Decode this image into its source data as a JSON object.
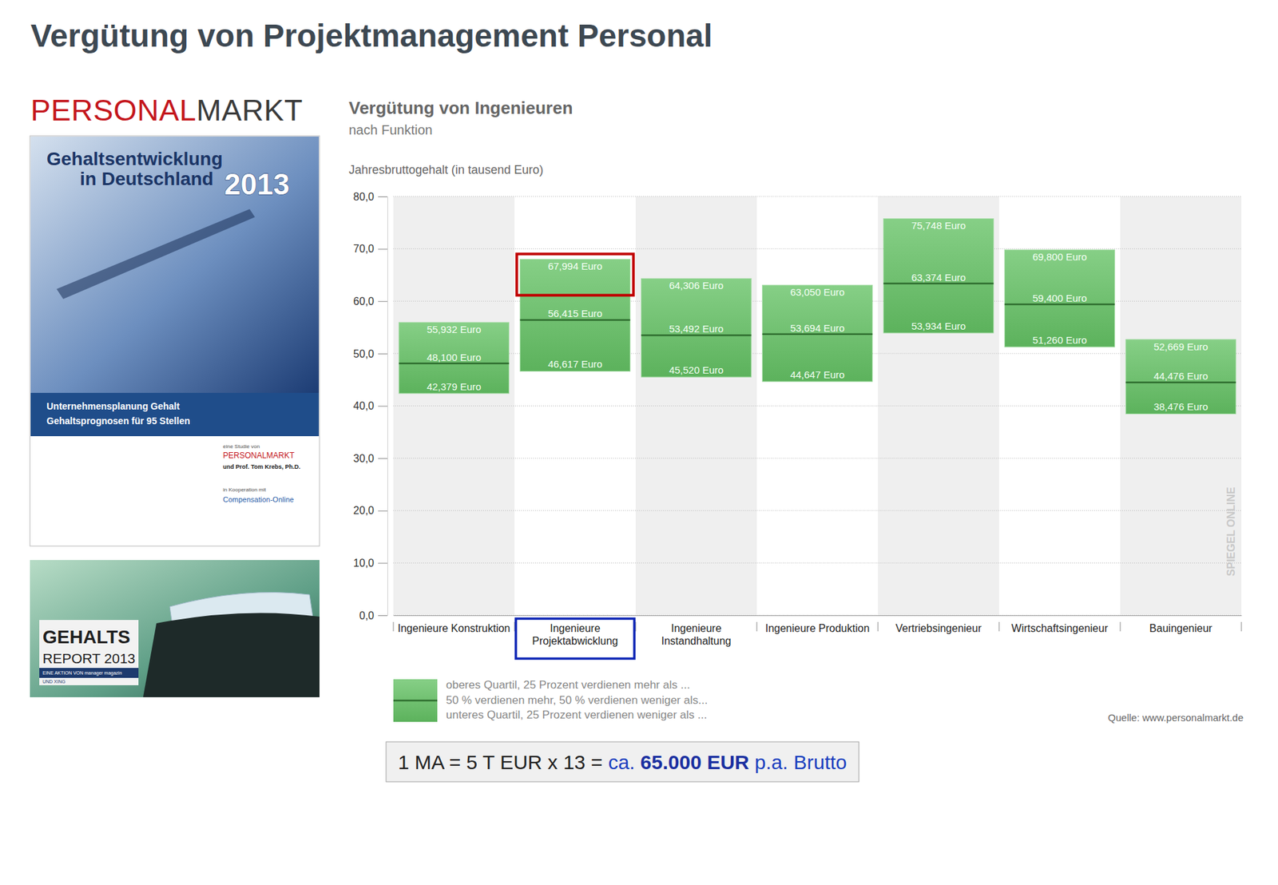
{
  "slide": {
    "title": "Vergütung von Projektmanagement Personal",
    "logo": [
      "PERSONAL",
      "MARKT"
    ],
    "cover": {
      "title_lines": [
        "Gehaltsentwicklung",
        "in Deutschland"
      ],
      "year": "2013",
      "band_lines": [
        "Unternehmensplanung Gehalt",
        "Gehaltsprognosen für 95 Stellen"
      ],
      "credits": [
        "eine Studie von",
        "PERSONALMARKT",
        "und Prof. Tom Krebs, Ph.D.",
        "in Kooperation mit",
        "Compensation-Online"
      ]
    },
    "report": [
      "GEHALTS",
      "REPORT 2013",
      "EINE AKTION VON manager magazin",
      "UND XING"
    ],
    "formula": [
      "1 MA = 5 T EUR x 13 = ",
      "ca. ",
      "65.000 EUR",
      " p.a. Brutto"
    ]
  },
  "chart_data": {
    "type": "box",
    "title": "Vergütung von Ingenieuren",
    "subtitle": "nach Funktion",
    "y_label": "Jahresbruttogehalt (in tausend Euro)",
    "source": "Quelle: www.personalmarkt.de",
    "watermark": "SPIEGEL ONLINE",
    "categories": [
      "Ingenieure Konstruktion",
      "Ingenieure Projektabwicklung",
      "Ingenieure Instandhaltung",
      "Ingenieure Produktion",
      "Vertriebsingenieur",
      "Wirtschaftsingenieur",
      "Bauingenieur"
    ],
    "series": [
      {
        "name": "oberes Quartil, 25 Prozent verdienen mehr als ...",
        "color": "#86cf86",
        "values": [
          55.932,
          67.994,
          64.306,
          63.05,
          75.748,
          69.8,
          52.669
        ],
        "value_labels": [
          "55,932 Euro",
          "67,994 Euro",
          "64,306 Euro",
          "63,050 Euro",
          "75,748 Euro",
          "69,800 Euro",
          "52,669 Euro"
        ]
      },
      {
        "name": "50 % verdienen mehr, 50 % verdienen weniger als...",
        "color": "#2f6e2f",
        "values": [
          48.1,
          56.415,
          53.492,
          53.694,
          63.374,
          59.4,
          44.476
        ],
        "value_labels": [
          "48,100 Euro",
          "56,415 Euro",
          "53,492 Euro",
          "53,694 Euro",
          "63,374 Euro",
          "59,400 Euro",
          "44,476 Euro"
        ]
      },
      {
        "name": "unteres Quartil, 25 Prozent verdienen weniger als ...",
        "color": "#5cb25c",
        "values": [
          42.379,
          46.617,
          45.52,
          44.647,
          53.934,
          51.26,
          38.476
        ],
        "value_labels": [
          "42,379 Euro",
          "46,617 Euro",
          "45,520 Euro",
          "44,647 Euro",
          "53,934 Euro",
          "51,260 Euro",
          "38,476 Euro"
        ]
      }
    ],
    "ylim": [
      0,
      80
    ],
    "yticks": [
      {
        "value": 0,
        "label": "0,0"
      },
      {
        "value": 10,
        "label": "10,0"
      },
      {
        "value": 20,
        "label": "20,0"
      },
      {
        "value": 30,
        "label": "30,0"
      },
      {
        "value": 40,
        "label": "40,0"
      },
      {
        "value": 50,
        "label": "50,0"
      },
      {
        "value": 60,
        "label": "60,0"
      },
      {
        "value": 70,
        "label": "70,0"
      },
      {
        "value": 80,
        "label": "80,0"
      }
    ],
    "grid": true,
    "data_labels": true,
    "legend": "bottom"
  }
}
